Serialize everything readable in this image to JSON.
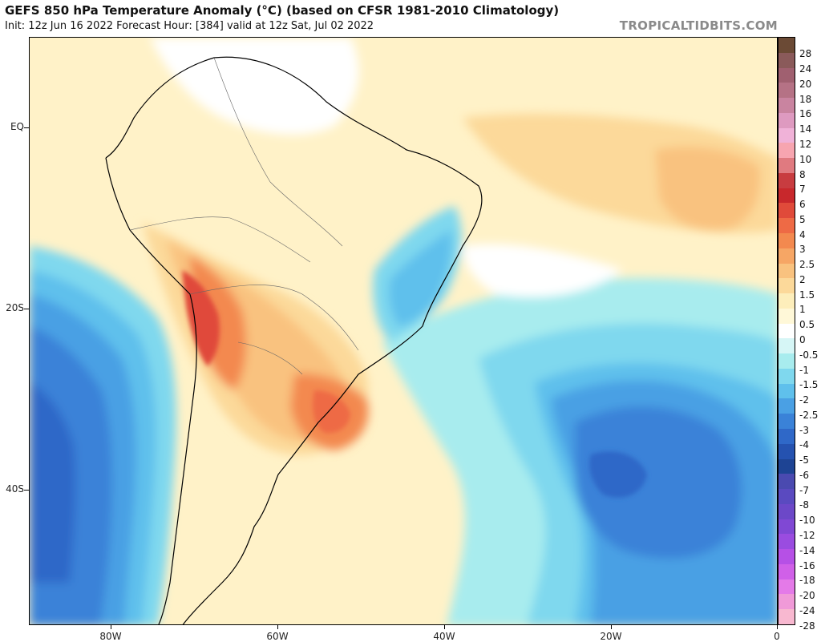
{
  "header": {
    "title": "GEFS 850 hPa Temperature Anomaly (°C) (based on CFSR 1981-2010 Climatology)",
    "subtitle": "Init: 12z Jun 16 2022   Forecast Hour: [384]   valid at 12z Sat, Jul 02 2022",
    "brand": "TROPICALTIDBITS.COM"
  },
  "map": {
    "lat_labels": [
      "EQ",
      "20S",
      "40S"
    ],
    "lon_labels": [
      "80W",
      "60W",
      "40W",
      "20W",
      "0"
    ]
  },
  "colorbar": {
    "levels": [
      "28",
      "24",
      "20",
      "18",
      "16",
      "14",
      "12",
      "10",
      "8",
      "7",
      "6",
      "5",
      "4",
      "3",
      "2.5",
      "2",
      "1.5",
      "1",
      "0.5",
      "0",
      "-0.5",
      "-1",
      "-1.5",
      "-2",
      "-2.5",
      "-3",
      "-4",
      "-5",
      "-6",
      "-7",
      "-8",
      "-10",
      "-12",
      "-14",
      "-16",
      "-18",
      "-20",
      "-24",
      "-28"
    ],
    "colors": [
      "#6b4a35",
      "#8a5a5a",
      "#a06070",
      "#b57285",
      "#c984a0",
      "#de9ac0",
      "#f0b2d8",
      "#f7a5b0",
      "#e07a80",
      "#c83c40",
      "#c8282c",
      "#e04a3a",
      "#ee6a45",
      "#f3894f",
      "#f6a665",
      "#f9c27f",
      "#fcd99a",
      "#fdeebb",
      "#fff8d8",
      "#ffffff",
      "#d6f6f6",
      "#a8ecee",
      "#7fd8ee",
      "#5fc0ec",
      "#4aa0e4",
      "#3a82d8",
      "#2f68c8",
      "#2552b0",
      "#1e4494",
      "#4a4ab0",
      "#5a4ac0",
      "#6c48c8",
      "#8048d4",
      "#9a4ce0",
      "#b650e6",
      "#d060e8",
      "#e47ae8",
      "#f09ad8",
      "#f8b8d0"
    ]
  }
}
